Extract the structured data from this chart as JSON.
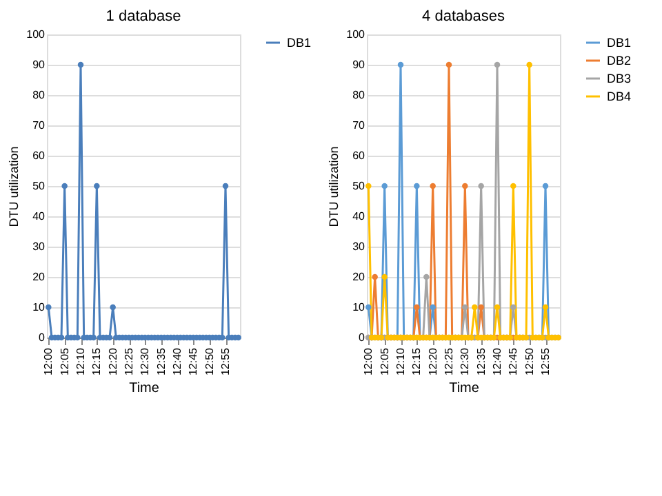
{
  "chart_data": [
    {
      "type": "line",
      "title": "1 database",
      "xlabel": "Time",
      "ylabel": "DTU utilization",
      "categories": [
        "12:00",
        null,
        null,
        null,
        null,
        "12:05",
        null,
        null,
        null,
        null,
        "12:10",
        null,
        null,
        null,
        null,
        "12:15",
        null,
        null,
        null,
        null,
        "12:20",
        null,
        null,
        null,
        null,
        "12:25",
        null,
        null,
        null,
        null,
        "12:30",
        null,
        null,
        null,
        null,
        "12:35",
        null,
        null,
        null,
        null,
        "12:40",
        null,
        null,
        null,
        null,
        "12:45",
        null,
        null,
        null,
        null,
        "12:50",
        null,
        null,
        null,
        null,
        "12:55",
        null,
        null,
        null,
        null
      ],
      "series": [
        {
          "name": "DB1",
          "color": "#4a7ebb",
          "values": [
            10,
            0,
            0,
            0,
            0,
            50,
            0,
            0,
            0,
            0,
            90,
            0,
            0,
            0,
            0,
            50,
            0,
            0,
            0,
            0,
            10,
            0,
            0,
            0,
            0,
            0,
            0,
            0,
            0,
            0,
            0,
            0,
            0,
            0,
            0,
            0,
            0,
            0,
            0,
            0,
            0,
            0,
            0,
            0,
            0,
            0,
            0,
            0,
            0,
            0,
            0,
            0,
            0,
            0,
            0,
            50,
            0,
            0,
            0,
            0
          ]
        }
      ],
      "ylim": [
        0,
        100
      ],
      "yticks": [
        0,
        10,
        20,
        30,
        40,
        50,
        60,
        70,
        80,
        90,
        100
      ],
      "grid": "y",
      "legend": "right",
      "marker": "circle",
      "line_style": "solid"
    },
    {
      "type": "line",
      "title": "4 databases",
      "xlabel": "Time",
      "ylabel": "DTU utilization",
      "categories": [
        "12:00",
        null,
        null,
        null,
        null,
        "12:05",
        null,
        null,
        null,
        null,
        "12:10",
        null,
        null,
        null,
        null,
        "12:15",
        null,
        null,
        null,
        null,
        "12:20",
        null,
        null,
        null,
        null,
        "12:25",
        null,
        null,
        null,
        null,
        "12:30",
        null,
        null,
        null,
        null,
        "12:35",
        null,
        null,
        null,
        null,
        "12:40",
        null,
        null,
        null,
        null,
        "12:45",
        null,
        null,
        null,
        null,
        "12:50",
        null,
        null,
        null,
        null,
        "12:55",
        null,
        null,
        null,
        null
      ],
      "series": [
        {
          "name": "DB1",
          "color": "#5b9bd5",
          "values": [
            10,
            0,
            null,
            null,
            0,
            50,
            0,
            null,
            null,
            0,
            90,
            0,
            null,
            null,
            0,
            50,
            0,
            null,
            null,
            0,
            10,
            0,
            null,
            null,
            null,
            null,
            null,
            null,
            null,
            null,
            null,
            null,
            null,
            null,
            null,
            null,
            null,
            null,
            null,
            null,
            null,
            null,
            null,
            null,
            null,
            null,
            null,
            null,
            null,
            null,
            null,
            null,
            null,
            null,
            0,
            50,
            0,
            null,
            null,
            null
          ]
        },
        {
          "name": "DB2",
          "color": "#ed7d31",
          "values": [
            0,
            0,
            20,
            0,
            0,
            0,
            0,
            0,
            0,
            0,
            0,
            0,
            0,
            0,
            0,
            10,
            0,
            0,
            0,
            0,
            50,
            0,
            0,
            0,
            0,
            90,
            0,
            0,
            0,
            0,
            50,
            0,
            0,
            0,
            0,
            10,
            0,
            0,
            0,
            0,
            0,
            0,
            0,
            0,
            0,
            0,
            0,
            0,
            0,
            null,
            null,
            null,
            null,
            null,
            null,
            null,
            null,
            null,
            null,
            null
          ]
        },
        {
          "name": "DB3",
          "color": "#a5a5a5",
          "values": [
            0,
            0,
            0,
            0,
            0,
            0,
            0,
            0,
            0,
            0,
            0,
            0,
            0,
            0,
            0,
            0,
            0,
            0,
            20,
            0,
            0,
            0,
            0,
            0,
            0,
            0,
            0,
            0,
            0,
            0,
            10,
            0,
            0,
            0,
            0,
            50,
            0,
            0,
            0,
            0,
            90,
            0,
            0,
            0,
            0,
            10,
            0,
            0,
            0,
            0,
            0,
            0,
            0,
            0,
            0,
            0,
            0,
            0,
            0,
            0
          ]
        },
        {
          "name": "DB4",
          "color": "#ffc000",
          "values": [
            50,
            0,
            0,
            0,
            0,
            20,
            0,
            0,
            0,
            0,
            0,
            0,
            0,
            0,
            0,
            0,
            0,
            0,
            0,
            0,
            0,
            0,
            0,
            0,
            0,
            0,
            0,
            0,
            0,
            0,
            0,
            0,
            0,
            10,
            0,
            0,
            0,
            0,
            0,
            0,
            10,
            0,
            0,
            0,
            0,
            50,
            0,
            0,
            0,
            0,
            90,
            0,
            0,
            0,
            0,
            10,
            0,
            0,
            0,
            0
          ]
        }
      ],
      "ylim": [
        0,
        100
      ],
      "yticks": [
        0,
        10,
        20,
        30,
        40,
        50,
        60,
        70,
        80,
        90,
        100
      ],
      "grid": "y",
      "legend": "right",
      "marker": "circle",
      "line_style": "solid"
    }
  ]
}
